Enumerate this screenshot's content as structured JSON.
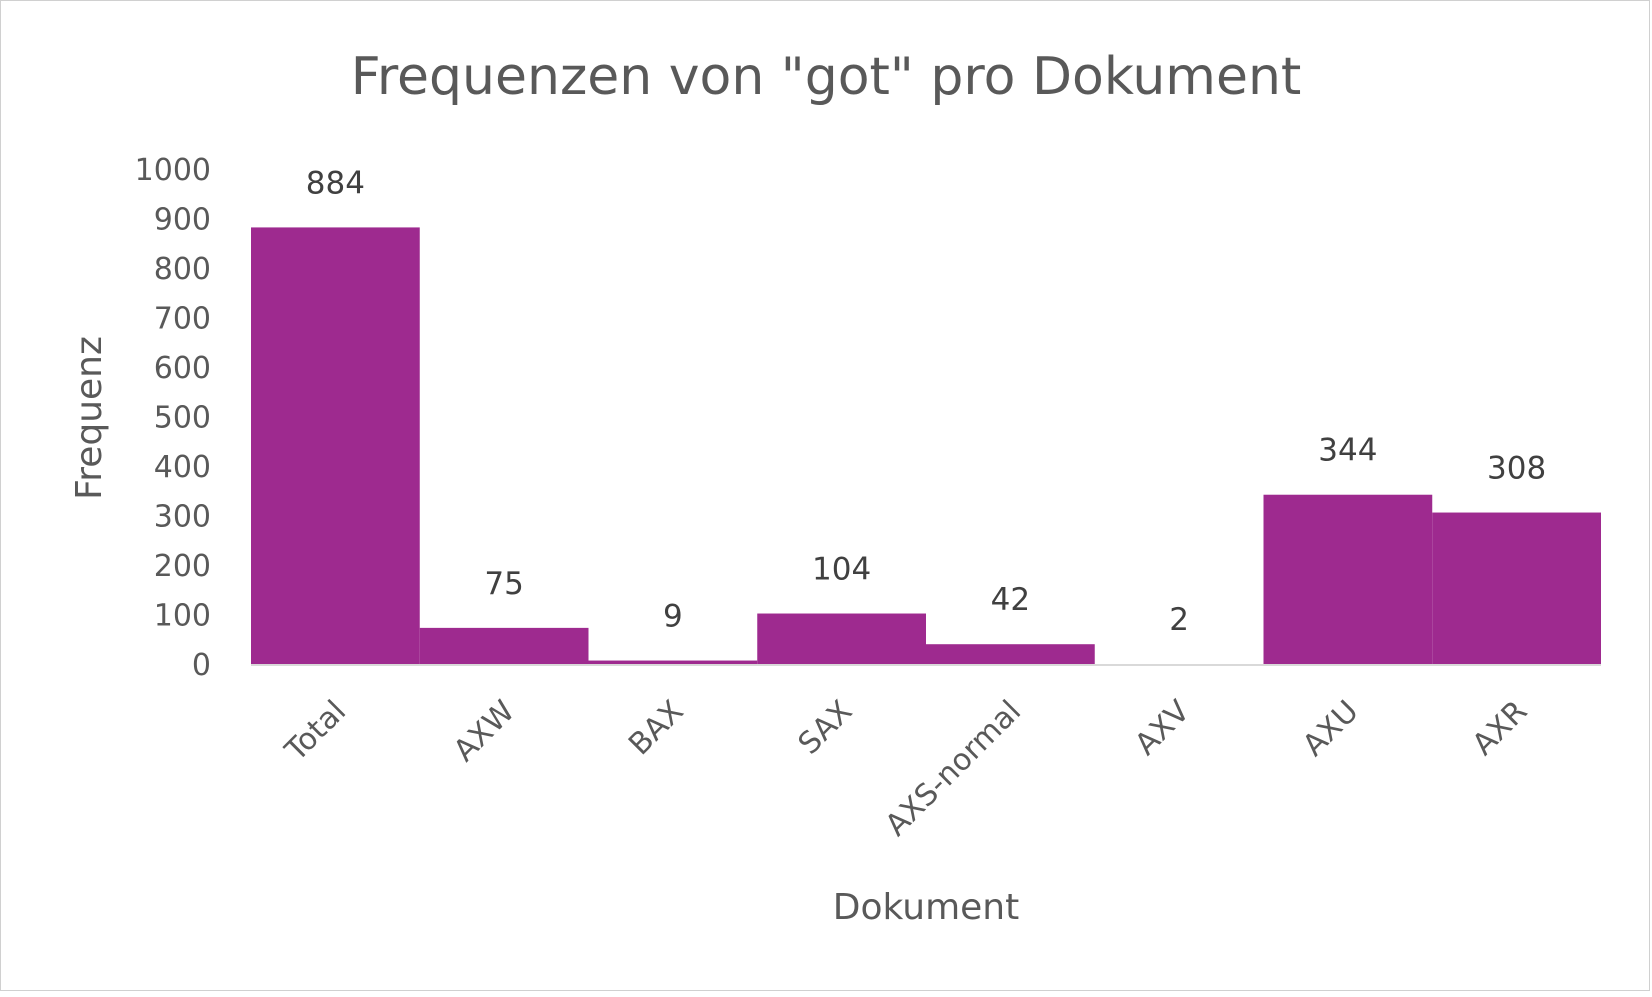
{
  "chart_data": {
    "type": "bar",
    "title": "Frequenzen von \"got\" pro Dokument",
    "xlabel": "Dokument",
    "ylabel": "Frequenz",
    "categories": [
      "Total",
      "AXW",
      "BAX",
      "SAX",
      "AXS-normal",
      "AXV",
      "AXU",
      "AXR"
    ],
    "values": [
      884,
      75,
      9,
      104,
      42,
      2,
      344,
      308
    ],
    "ylim": [
      0,
      1000
    ],
    "yticks": [
      "0",
      "100",
      "200",
      "300",
      "400",
      "500",
      "600",
      "700",
      "800",
      "900",
      "1000"
    ],
    "grid": false,
    "legend": "none",
    "colors": {
      "bar": "#9E2A8F",
      "text": "#595959",
      "axis": "#d9d9d9"
    }
  }
}
